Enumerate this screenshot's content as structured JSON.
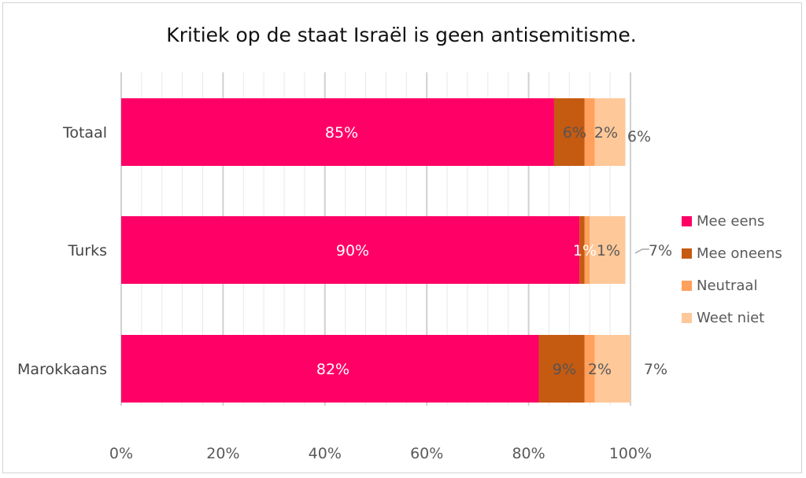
{
  "chart_data": {
    "type": "bar",
    "orientation": "horizontal",
    "stacked": true,
    "title": "Kritiek op de staat Israël is geen antisemitisme.",
    "categories": [
      "Totaal",
      "Turks",
      "Marokkaans"
    ],
    "series": [
      {
        "name": "Mee eens",
        "color": "#FF0066",
        "values": [
          85,
          90,
          82
        ],
        "labels": [
          "85%",
          "90%",
          "82%"
        ]
      },
      {
        "name": "Mee oneens",
        "color": "#C55A11",
        "values": [
          6,
          1,
          9
        ],
        "labels": [
          "6%",
          "1%",
          "9%"
        ]
      },
      {
        "name": "Neutraal",
        "color": "#FFA05C",
        "values": [
          2,
          1,
          2
        ],
        "labels": [
          "2%",
          "1%",
          "2%"
        ]
      },
      {
        "name": "Weet niet",
        "color": "#FFC899",
        "values": [
          6,
          7,
          7
        ],
        "labels": [
          "6%",
          "7%",
          "7%"
        ]
      }
    ],
    "xlim": [
      0,
      100
    ],
    "xticks": [
      "0%",
      "20%",
      "40%",
      "60%",
      "80%",
      "100%"
    ],
    "grid": true,
    "legend_position": "right"
  }
}
